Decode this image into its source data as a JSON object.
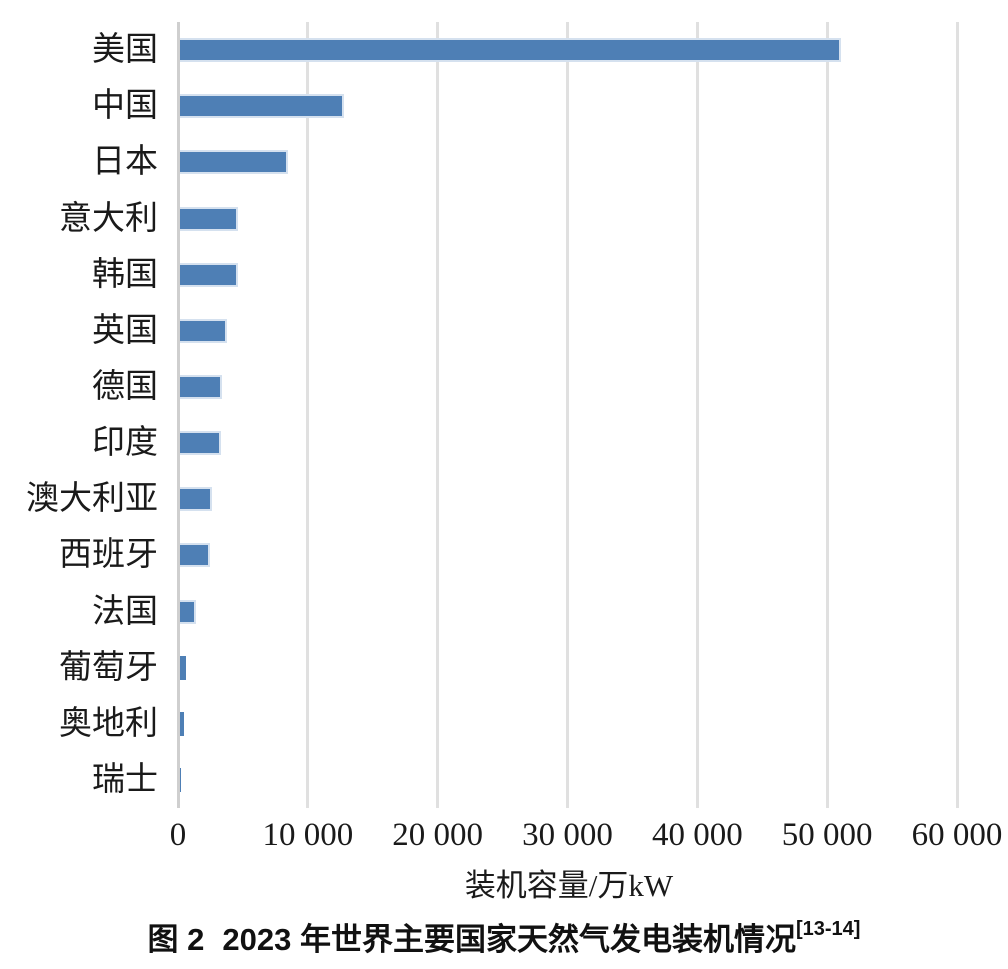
{
  "chart_data": {
    "type": "bar",
    "orientation": "horizontal",
    "title": "",
    "xlabel": "装机容量/万kW",
    "ylabel": "",
    "xlim": [
      0,
      60000
    ],
    "grid": "vertical",
    "legend": "none",
    "categories": [
      "美国",
      "中国",
      "日本",
      "意大利",
      "韩国",
      "英国",
      "德国",
      "印度",
      "澳大利亚",
      "西班牙",
      "法国",
      "葡萄牙",
      "奥地利",
      "瑞士"
    ],
    "values": [
      50900,
      12600,
      8300,
      4500,
      4450,
      3650,
      3250,
      3150,
      2500,
      2330,
      1200,
      450,
      300,
      30
    ],
    "xticks": {
      "values": [
        0,
        10000,
        20000,
        30000,
        40000,
        50000,
        60000
      ],
      "labels": [
        "0",
        "10 000",
        "20 000",
        "30 000",
        "40 000",
        "50 000",
        "60 000"
      ]
    },
    "colors": {
      "bar_fill": "#4e7fb5",
      "bar_edge": "#d5e1ef",
      "gridline": "#e0e0e0",
      "zero_line": "#cfcfcf",
      "text": "#1a1a1a"
    }
  },
  "caption": {
    "figure_label": "图 2",
    "title": "2023 年世界主要国家天然气发电装机情况",
    "reference": "[13-14]"
  }
}
